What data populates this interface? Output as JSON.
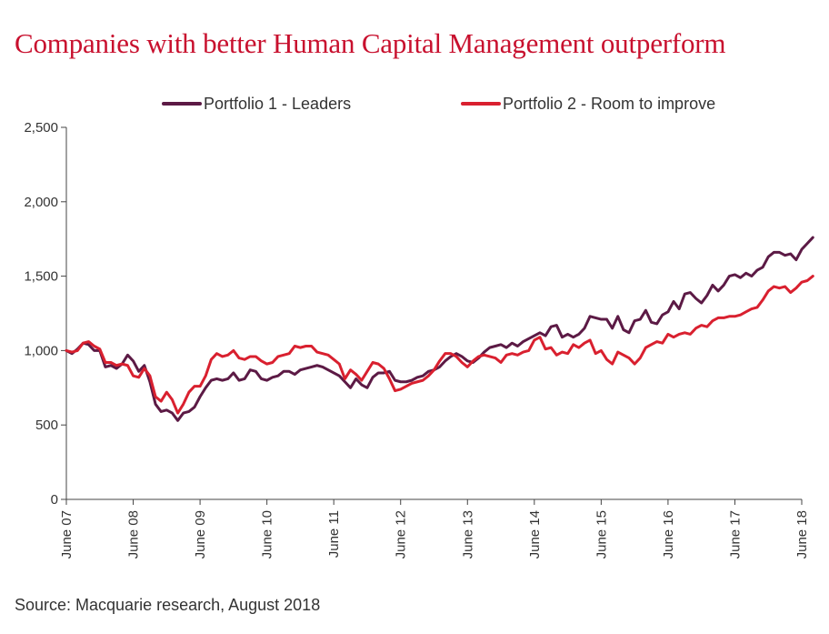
{
  "title": "Companies with better Human Capital Management outperform",
  "source": "Source: Macquarie research, August 2018",
  "colors": {
    "title": "#c8102e",
    "axis": "#444444",
    "text": "#333333"
  },
  "chart_data": {
    "type": "line",
    "title": "Companies with better Human Capital Management outperform",
    "xlabel": "",
    "ylabel": "",
    "ylim": [
      0,
      2500
    ],
    "yticks": [
      0,
      500,
      1000,
      1500,
      2000,
      2500
    ],
    "ytick_labels": [
      "0",
      "500",
      "1,000",
      "1,500",
      "2,000",
      "2,500"
    ],
    "xlim": [
      0,
      132
    ],
    "xticks": [
      0,
      12,
      24,
      36,
      48,
      60,
      72,
      84,
      96,
      108,
      120,
      132
    ],
    "xtick_labels": [
      "June 07",
      "June 08",
      "June 09",
      "June 10",
      "June 11",
      "June 12",
      "June 13",
      "June 14",
      "June 15",
      "June 16",
      "June 17",
      "June 18"
    ],
    "x_unit": "months since June 2007",
    "grid": false,
    "legend_position": "top",
    "series": [
      {
        "name": "Portfolio 1 - Leaders",
        "color": "#5c1a45",
        "values": [
          1000,
          980,
          1010,
          1050,
          1040,
          1000,
          1000,
          890,
          900,
          880,
          910,
          970,
          930,
          860,
          900,
          790,
          640,
          590,
          600,
          580,
          530,
          580,
          590,
          620,
          690,
          750,
          800,
          810,
          800,
          810,
          850,
          800,
          810,
          870,
          860,
          810,
          800,
          820,
          830,
          860,
          860,
          840,
          870,
          880,
          890,
          900,
          890,
          870,
          850,
          830,
          790,
          750,
          810,
          770,
          750,
          820,
          850,
          850,
          860,
          800,
          790,
          790,
          800,
          820,
          830,
          860,
          870,
          890,
          930,
          960,
          980,
          960,
          930,
          920,
          950,
          990,
          1020,
          1030,
          1040,
          1020,
          1050,
          1030,
          1060,
          1080,
          1100,
          1120,
          1100,
          1160,
          1170,
          1090,
          1110,
          1090,
          1110,
          1150,
          1230,
          1220,
          1210,
          1210,
          1150,
          1230,
          1140,
          1120,
          1200,
          1210,
          1270,
          1190,
          1180,
          1240,
          1260,
          1330,
          1280,
          1380,
          1390,
          1350,
          1320,
          1370,
          1440,
          1400,
          1440,
          1500,
          1510,
          1490,
          1520,
          1500,
          1540,
          1560,
          1630,
          1660,
          1660,
          1640,
          1650,
          1610,
          1680,
          1720,
          1760
        ]
      },
      {
        "name": "Portfolio 2 - Room to improve",
        "color": "#d9202f",
        "values": [
          1000,
          990,
          1000,
          1050,
          1060,
          1030,
          1010,
          920,
          920,
          900,
          910,
          900,
          830,
          820,
          880,
          830,
          690,
          660,
          720,
          670,
          580,
          640,
          720,
          760,
          760,
          830,
          940,
          980,
          960,
          970,
          1000,
          950,
          940,
          960,
          960,
          930,
          910,
          920,
          960,
          970,
          980,
          1030,
          1020,
          1030,
          1030,
          990,
          980,
          970,
          940,
          910,
          810,
          870,
          840,
          800,
          860,
          920,
          910,
          880,
          810,
          730,
          740,
          760,
          780,
          790,
          800,
          830,
          870,
          930,
          980,
          980,
          960,
          920,
          890,
          930,
          960,
          970,
          960,
          950,
          920,
          970,
          980,
          970,
          990,
          1000,
          1070,
          1090,
          1010,
          1020,
          970,
          990,
          980,
          1040,
          1020,
          1050,
          1070,
          980,
          1000,
          940,
          910,
          990,
          970,
          950,
          910,
          950,
          1020,
          1040,
          1060,
          1050,
          1110,
          1090,
          1110,
          1120,
          1110,
          1150,
          1170,
          1160,
          1200,
          1220,
          1220,
          1230,
          1230,
          1240,
          1260,
          1280,
          1290,
          1340,
          1400,
          1430,
          1420,
          1430,
          1390,
          1420,
          1460,
          1470,
          1500
        ]
      }
    ]
  }
}
